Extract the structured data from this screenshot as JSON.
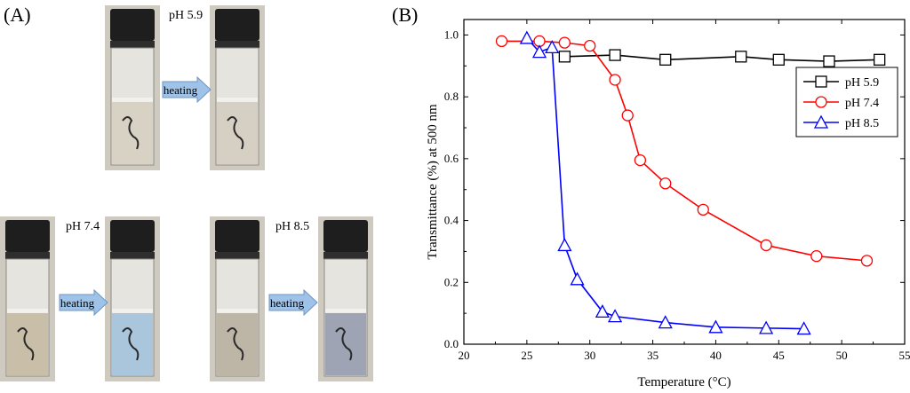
{
  "panel_a": {
    "label": "(A)",
    "groups": [
      {
        "ph": "pH 5.9",
        "arrow": "heating",
        "before_liquid": "#d8d2c4",
        "after_liquid": "#d6d0c4"
      },
      {
        "ph": "pH 7.4",
        "arrow": "heating",
        "before_liquid": "#c9bfa8",
        "after_liquid": "#a9c6dc"
      },
      {
        "ph": "pH 8.5",
        "arrow": "heating",
        "before_liquid": "#bdb5a6",
        "after_liquid": "#9ea4b4"
      }
    ]
  },
  "panel_b": {
    "label": "(B)"
  },
  "chart_data": {
    "type": "line",
    "xlabel": "Temperature (°C)",
    "ylabel": "Transmittance (%) at 500 nm",
    "xlim": [
      20,
      55
    ],
    "ylim": [
      0,
      1.05
    ],
    "xticks": [
      20,
      25,
      30,
      35,
      40,
      45,
      50,
      55
    ],
    "yticks": [
      0.0,
      0.2,
      0.4,
      0.6,
      0.8,
      1.0
    ],
    "ytick_labels": [
      "0.0",
      "0.2",
      "0.4",
      "0.6",
      "0.8",
      "1.0"
    ],
    "legend_position": "top-right",
    "series": [
      {
        "name": "pH 5.9",
        "color": "#000000",
        "marker": "square",
        "x": [
          28,
          32,
          36,
          42,
          45,
          49,
          53
        ],
        "y": [
          0.93,
          0.935,
          0.92,
          0.93,
          0.92,
          0.915,
          0.92
        ]
      },
      {
        "name": "pH 7.4",
        "color": "#ff0000",
        "marker": "circle",
        "x": [
          23,
          26,
          28,
          30,
          32,
          33,
          34,
          36,
          39,
          44,
          48,
          52
        ],
        "y": [
          0.98,
          0.98,
          0.975,
          0.965,
          0.855,
          0.74,
          0.595,
          0.52,
          0.435,
          0.32,
          0.285,
          0.27
        ]
      },
      {
        "name": "pH 8.5",
        "color": "#0000ff",
        "marker": "triangle",
        "x": [
          25,
          26,
          27,
          28,
          29,
          31,
          32,
          36,
          40,
          44,
          47
        ],
        "y": [
          0.99,
          0.945,
          0.96,
          0.32,
          0.21,
          0.105,
          0.09,
          0.07,
          0.055,
          0.052,
          0.05
        ]
      }
    ]
  }
}
